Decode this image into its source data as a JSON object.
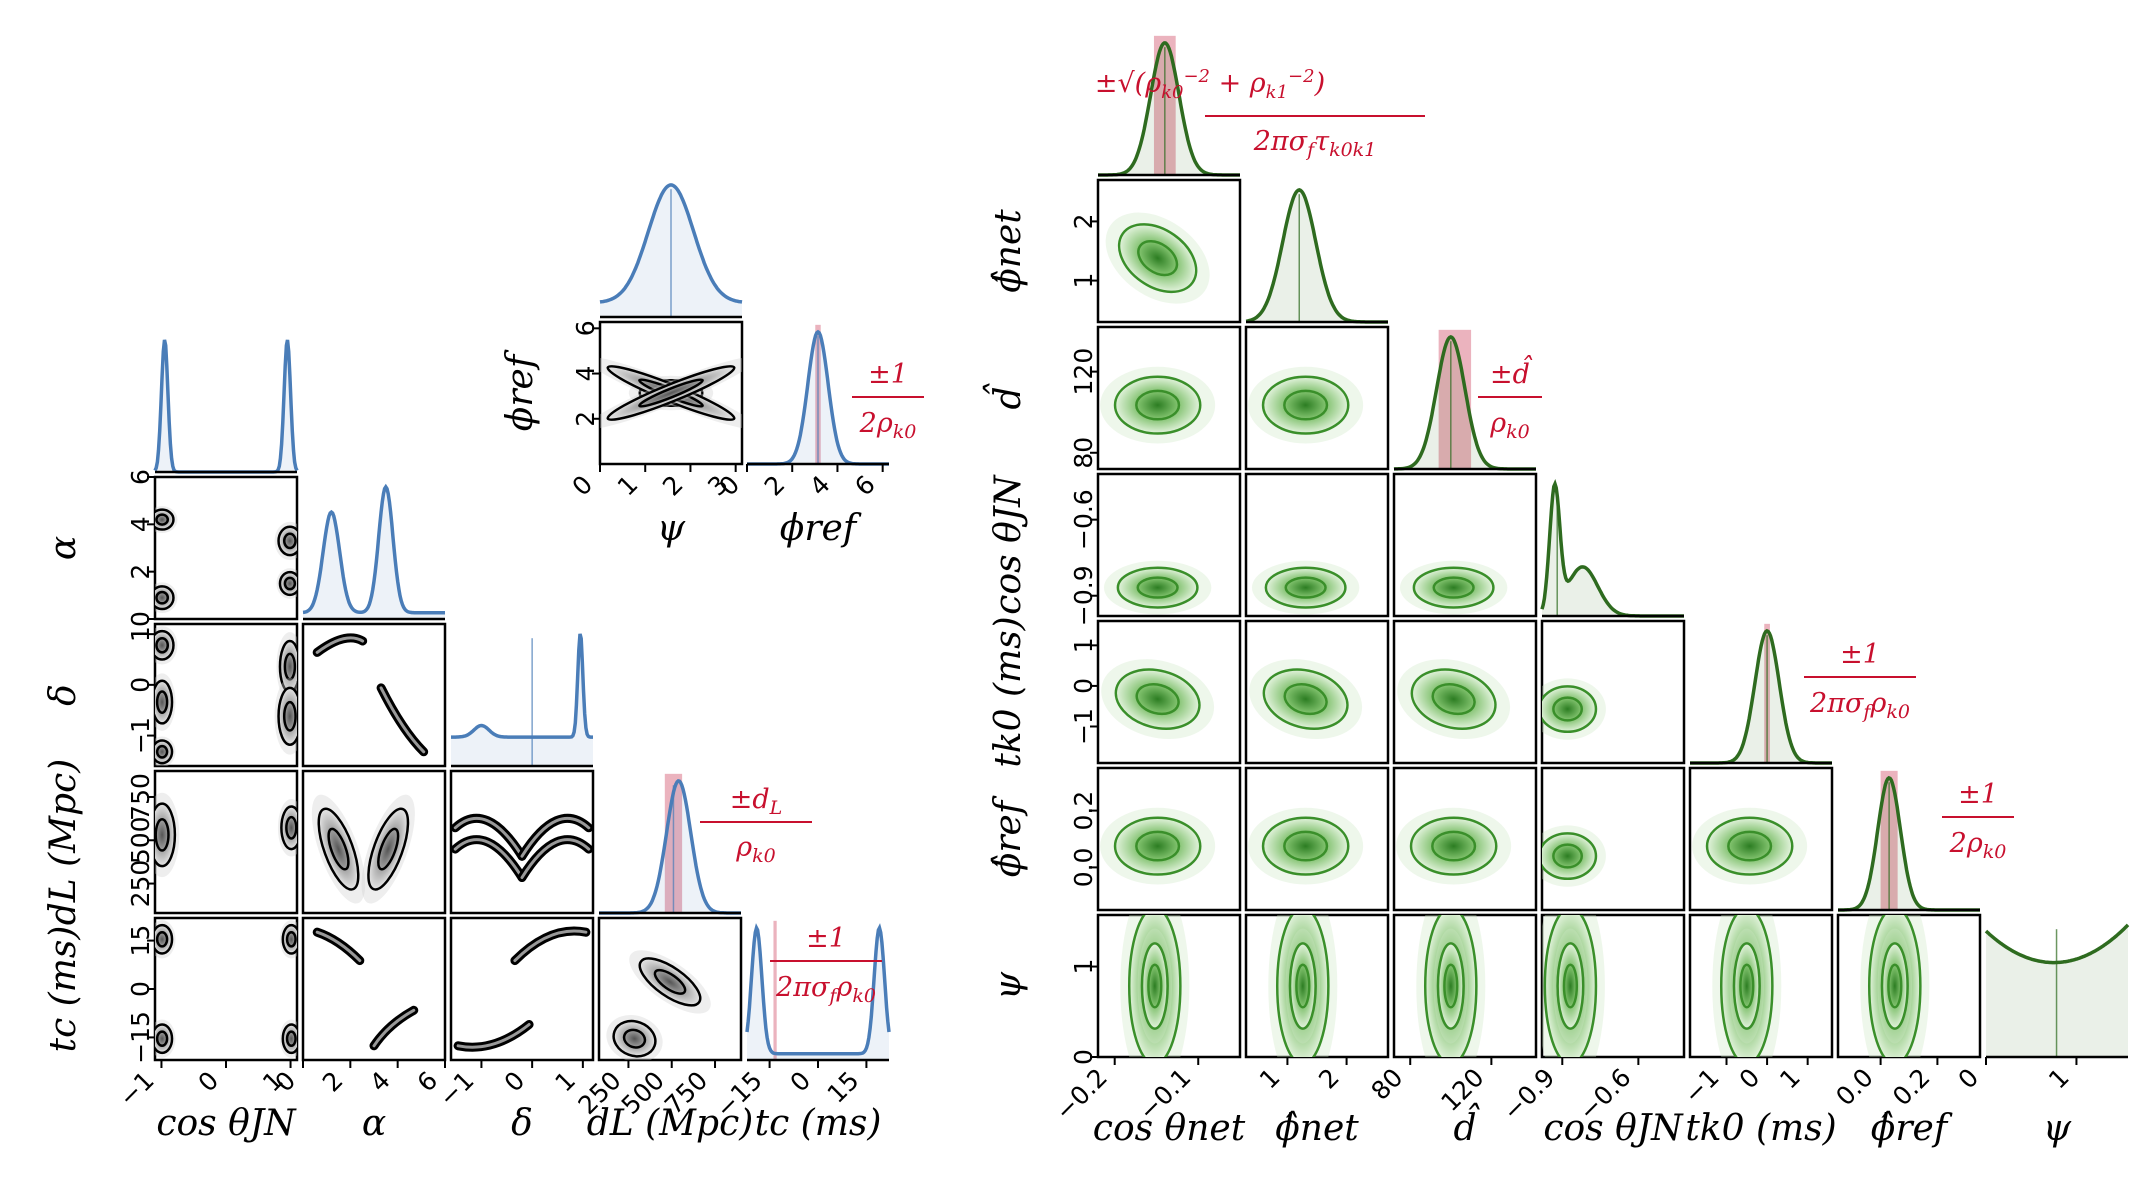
{
  "chart_data": [
    {
      "type": "corner",
      "panel": "left",
      "params": [
        "cos θJN",
        "α",
        "δ",
        "dL (Mpc)",
        "tc (ms)"
      ],
      "axes": [
        {
          "range": [
            -1.1,
            1.1
          ],
          "ticks": [
            -1,
            0,
            1
          ],
          "tick_labels": [
            "−1",
            "0",
            "1"
          ]
        },
        {
          "range": [
            0,
            6
          ],
          "ticks": [
            0,
            2,
            4,
            6
          ],
          "tick_labels": [
            "0",
            "2",
            "4",
            "6"
          ]
        },
        {
          "range": [
            -1.6,
            1.2
          ],
          "ticks": [
            -1,
            0,
            1
          ],
          "tick_labels": [
            "−1",
            "0",
            "1"
          ]
        },
        {
          "range": [
            80,
            900
          ],
          "ticks": [
            250,
            500,
            750
          ],
          "tick_labels": [
            "250",
            "500",
            "750"
          ]
        },
        {
          "range": [
            -22,
            22
          ],
          "ticks": [
            -15,
            0,
            15
          ],
          "tick_labels": [
            "−15",
            "0",
            "15"
          ]
        }
      ],
      "x_axis_labels": [
        "cos θJN",
        "α",
        "δ",
        "dL (Mpc)",
        "tc (ms)"
      ],
      "y_axis_labels": [
        "α",
        "δ",
        "dL (Mpc)",
        "tc (ms)"
      ],
      "marginal_color": "#4a7db8",
      "contour_color": "#000000",
      "marginals": [
        {
          "param": "cos θJN",
          "shape": "bimodal peaks near −1 and +1",
          "peaks": [
            -0.95,
            0.95
          ]
        },
        {
          "param": "α",
          "shape": "bimodal",
          "peaks": [
            1.2,
            3.5
          ]
        },
        {
          "param": "δ",
          "shape": "flat with sharp peak near +1",
          "median": 0.0
        },
        {
          "param": "dL (Mpc)",
          "shape": "unimodal",
          "peak": 540,
          "injected_band": [
            460,
            560
          ]
        },
        {
          "param": "tc (ms)",
          "shape": "bimodal peaks near ±19",
          "peaks": [
            -19,
            19
          ]
        }
      ],
      "annotations": [
        "±dL / ρk0",
        "±1 / 2πσfρk0"
      ]
    },
    {
      "type": "corner",
      "panel": "inset",
      "params": [
        "ψ",
        "ϕref"
      ],
      "axes": [
        {
          "range": [
            0,
            3.14
          ],
          "ticks": [
            0,
            1,
            2,
            3
          ],
          "tick_labels": [
            "0",
            "1",
            "2",
            "3"
          ]
        },
        {
          "range": [
            0,
            6.28
          ],
          "ticks": [
            0,
            2,
            4,
            6
          ],
          "tick_labels": [
            "0",
            "2",
            "4",
            "6"
          ]
        }
      ],
      "y_tick_labels_2d": [
        "2",
        "4",
        "6"
      ],
      "x_axis_labels": [
        "ψ",
        "ϕref"
      ],
      "y_axis_labels": [
        "ϕref"
      ],
      "marginals": [
        {
          "param": "ψ",
          "shape": "unimodal",
          "peak": 1.57
        },
        {
          "param": "ϕref",
          "shape": "unimodal",
          "peak": 3.14,
          "injected_band": [
            3.02,
            3.26
          ]
        }
      ],
      "annotations": [
        "±1 / 2ρk0"
      ]
    },
    {
      "type": "corner",
      "panel": "right",
      "params": [
        "cos θnet",
        "ϕ̂net",
        "d̂",
        "cos θJN",
        "tk0 (ms)",
        "ϕ̂ref",
        "ψ"
      ],
      "axes": [
        {
          "range": [
            -0.22,
            -0.05
          ],
          "ticks": [
            -0.2,
            -0.1
          ],
          "tick_labels": [
            "−0.2",
            "−0.1"
          ]
        },
        {
          "range": [
            0.3,
            2.7
          ],
          "ticks": [
            1,
            2
          ],
          "tick_labels": [
            "1",
            "2"
          ]
        },
        {
          "range": [
            72,
            142
          ],
          "ticks": [
            80,
            120
          ],
          "tick_labels": [
            "80",
            "120"
          ]
        },
        {
          "range": [
            -0.98,
            -0.42
          ],
          "ticks": [
            -0.9,
            -0.6
          ],
          "tick_labels": [
            "−0.9",
            "−0.6"
          ]
        },
        {
          "range": [
            -1.9,
            1.6
          ],
          "ticks": [
            -1,
            0,
            1
          ],
          "tick_labels": [
            "−1",
            "0",
            "1"
          ]
        },
        {
          "range": [
            -0.15,
            0.35
          ],
          "ticks": [
            0.0,
            0.2
          ],
          "tick_labels": [
            "0.0",
            "0.2"
          ]
        },
        {
          "range": [
            0,
            1.57
          ],
          "ticks": [
            0,
            1
          ],
          "tick_labels": [
            "0",
            "1"
          ]
        }
      ],
      "y_tick_labels": [
        [
          "1",
          "2"
        ],
        [
          "80",
          "120"
        ],
        [
          "−0.9",
          "−0.6"
        ],
        [
          "−1",
          "0",
          "1"
        ],
        [
          "0.0",
          "0.2"
        ],
        [
          "0",
          "1"
        ]
      ],
      "x_axis_labels": [
        "cos θnet",
        "ϕ̂net",
        "d̂",
        "cos θJN",
        "tk0 (ms)",
        "ϕ̂ref",
        "ψ"
      ],
      "y_axis_labels": [
        "ϕ̂net",
        "d̂",
        "cos θJN",
        "tk0 (ms)",
        "ϕ̂ref",
        "ψ"
      ],
      "marginal_color": "#2e6b1f",
      "contour_color": "#3a8f2a",
      "marginals": [
        {
          "param": "cos θnet",
          "shape": "unimodal",
          "peak": -0.14,
          "injected_band": [
            -0.153,
            -0.127
          ]
        },
        {
          "param": "ϕ̂net",
          "shape": "unimodal",
          "peak": 1.2
        },
        {
          "param": "d̂",
          "shape": "unimodal",
          "peak": 100,
          "injected_band": [
            94,
            110
          ]
        },
        {
          "param": "cos θJN",
          "shape": "peak near −0.93 with tail",
          "peak": -0.93
        },
        {
          "param": "tk0 (ms)",
          "shape": "unimodal",
          "peak": 0.0,
          "injected_band": [
            -0.07,
            0.07
          ]
        },
        {
          "param": "ϕ̂ref",
          "shape": "unimodal",
          "peak": 0.03,
          "injected_band": [
            0.0,
            0.06
          ]
        },
        {
          "param": "ψ",
          "shape": "broad, minimum near 0.75",
          "min": 0.75
        }
      ],
      "annotations": [
        "±√(ρk0⁻² + ρk1⁻²) / 2πσfτk0k1",
        "±d̂ / ρk0",
        "±1 / 2πσfρk0",
        "±1 / 2ρk0"
      ]
    }
  ]
}
